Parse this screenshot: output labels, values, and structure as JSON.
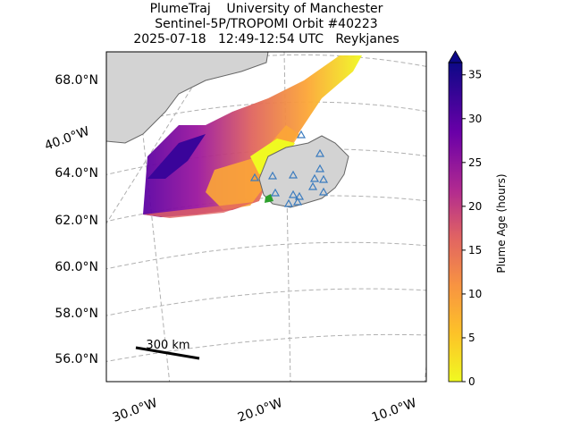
{
  "title": [
    "PlumeTraj    University of Manchester",
    "Sentinel-5P/TROPOMI Orbit #40223",
    "2025-07-18   12:49-12:54 UTC   Reykjanes"
  ],
  "map": {
    "lat_labels": [
      "68.0°N",
      "64.0°N",
      "62.0°N",
      "60.0°N",
      "58.0°N",
      "56.0°N"
    ],
    "lon_labels": [
      "40.0°W",
      "30.0°W",
      "20.0°W",
      "10.0°W"
    ],
    "scale_label": "300 km"
  },
  "colorbar": {
    "label": "Plume Age (hours)",
    "range": [
      0,
      36.4
    ],
    "ticks": [
      0,
      5,
      10,
      15,
      20,
      25,
      30,
      35
    ]
  }
}
